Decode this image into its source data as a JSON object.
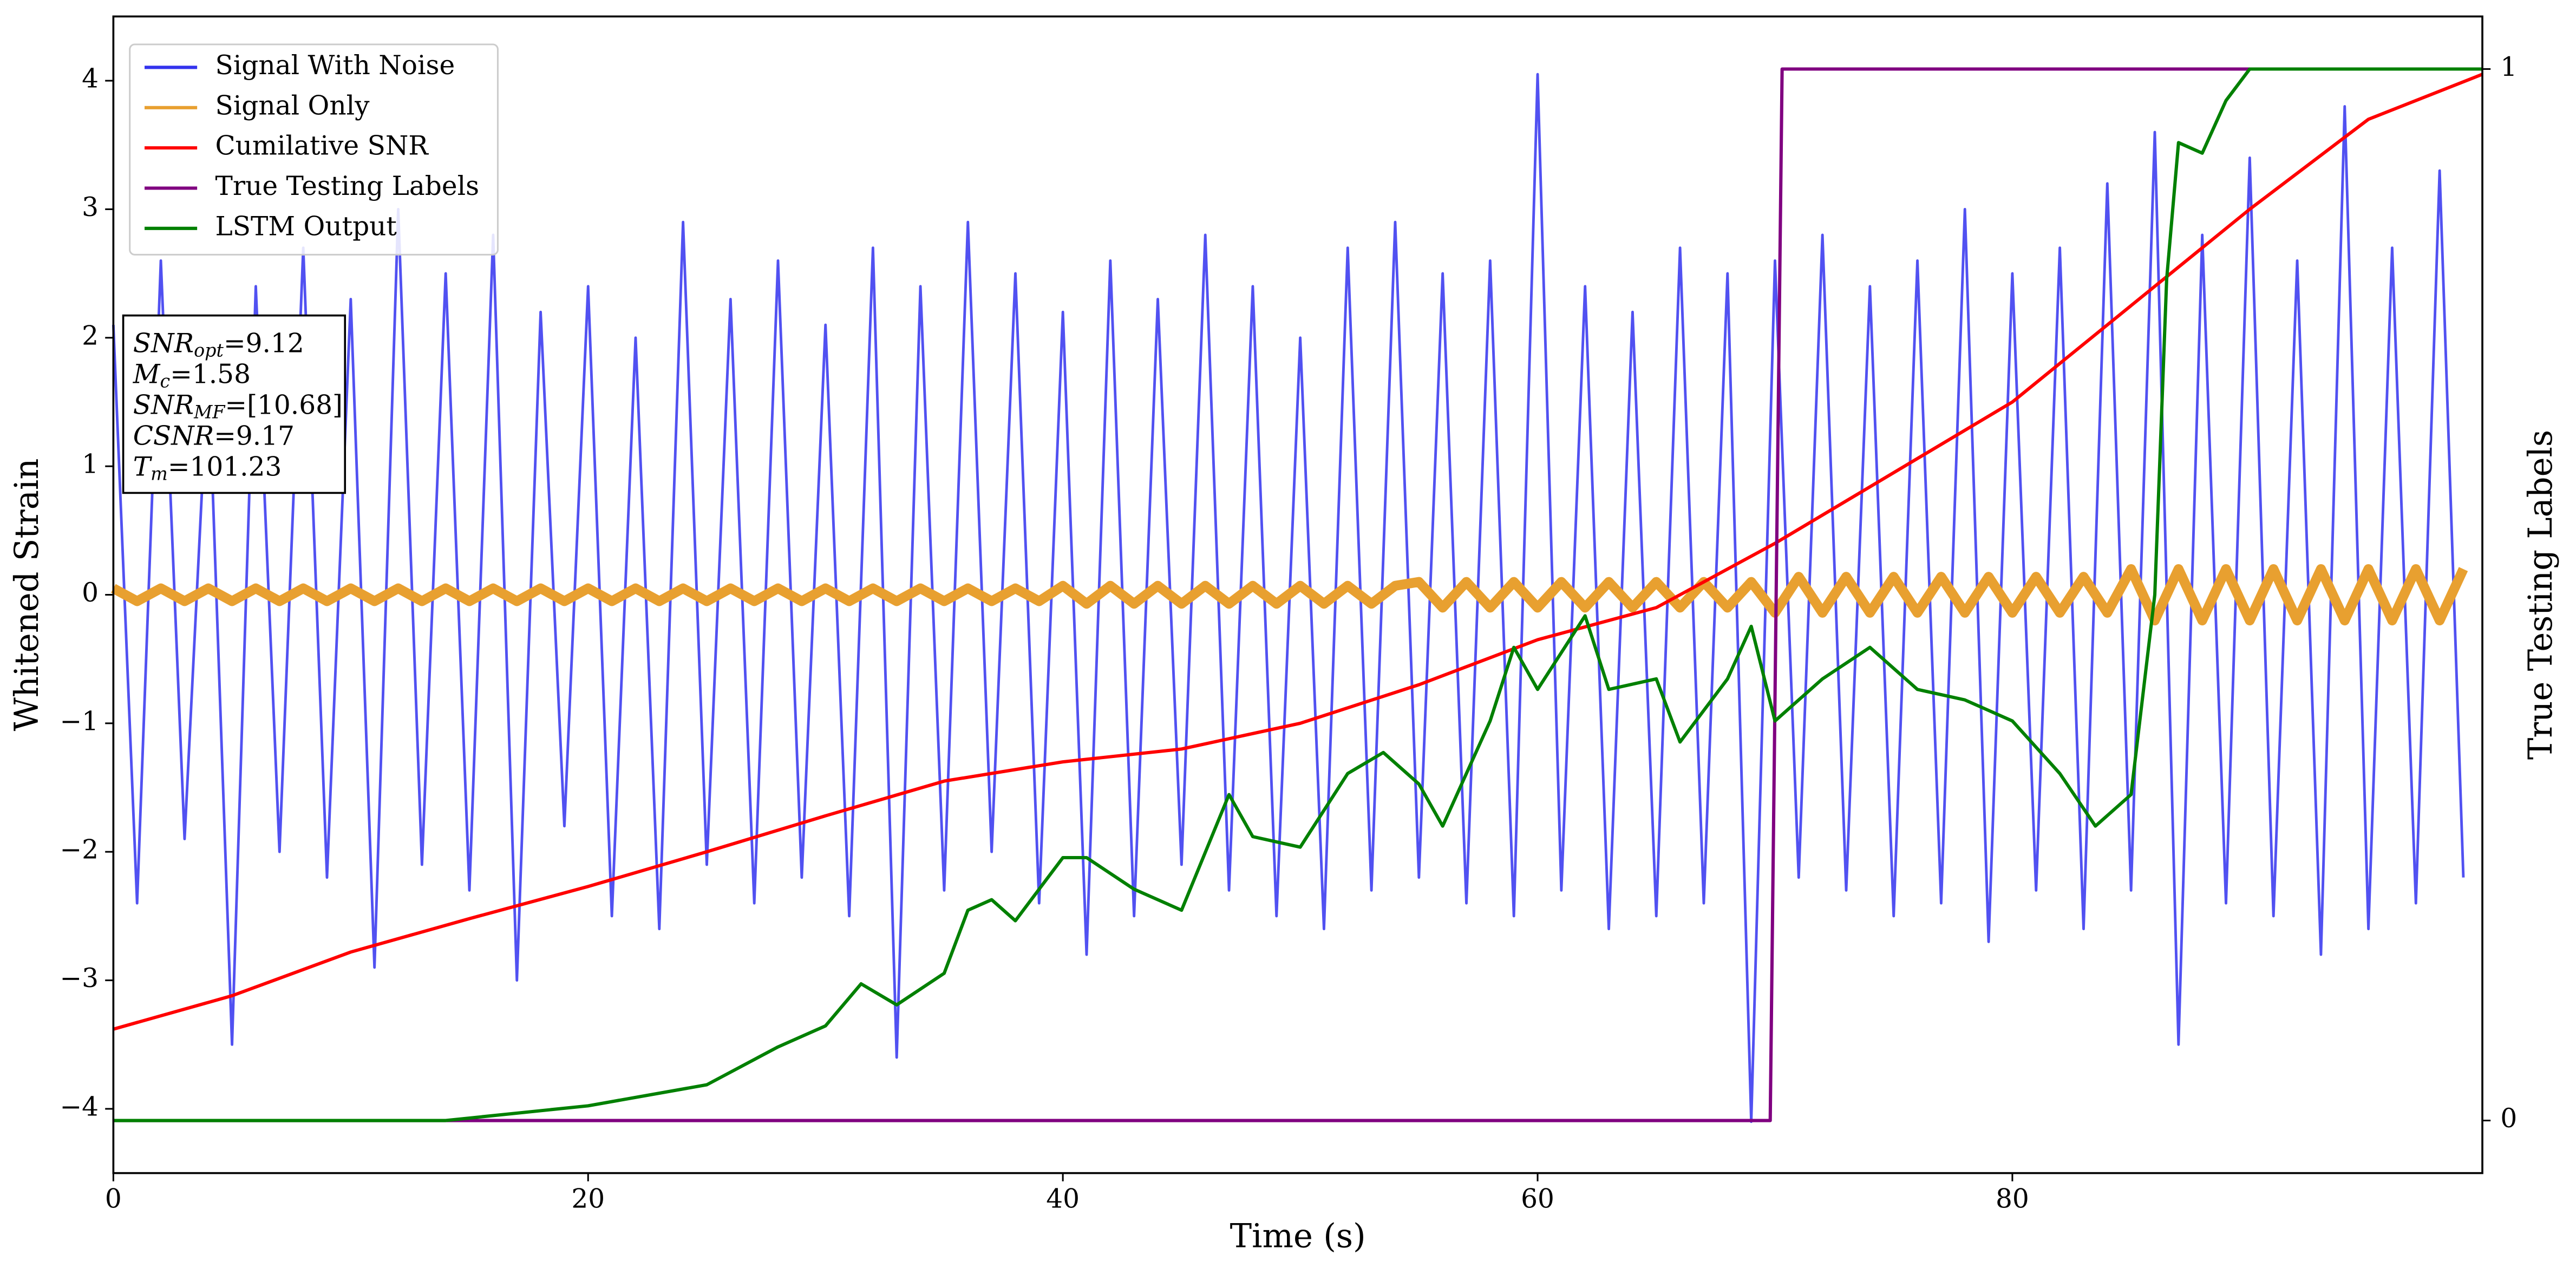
{
  "chart_data": {
    "type": "line",
    "x_label": "Time (s)",
    "y_label": "Whitened Strain",
    "y2_label": "True Testing Labels",
    "xlim": [
      0,
      99.8
    ],
    "ylim": [
      -4.5,
      4.5
    ],
    "y2lim": [
      -0.05,
      1.05
    ],
    "xticks": [
      0,
      20,
      40,
      60,
      80
    ],
    "yticks": [
      -4,
      -3,
      -2,
      -1,
      0,
      1,
      2,
      3,
      4
    ],
    "y2ticks": [
      0,
      1
    ],
    "legend": "upper left",
    "annotation": [
      {
        "main": "SNR",
        "sub": "opt",
        "value": "=9.12"
      },
      {
        "main": "M",
        "sub": "c",
        "value": "=1.58"
      },
      {
        "main": "SNR",
        "sub": "MF",
        "value": "=[10.68]"
      },
      {
        "main": "CSNR",
        "value": "=9.17"
      },
      {
        "main": "T",
        "sub": "m",
        "value": "=101.23"
      }
    ],
    "series": [
      {
        "name": "Signal With Noise",
        "color": "#3333ee",
        "width": 1.6,
        "x": [
          0,
          1,
          2,
          3,
          4,
          5,
          6,
          7,
          8,
          9,
          10,
          11,
          12,
          13,
          14,
          15,
          16,
          17,
          18,
          19,
          20,
          21,
          22,
          23,
          24,
          25,
          26,
          27,
          28,
          29,
          30,
          31,
          32,
          33,
          34,
          35,
          36,
          37,
          38,
          39,
          40,
          41,
          42,
          43,
          44,
          45,
          46,
          47,
          48,
          49,
          50,
          51,
          52,
          53,
          54,
          55,
          56,
          57,
          58,
          59,
          60,
          61,
          62,
          63,
          64,
          65,
          66,
          67,
          68,
          69,
          70,
          71,
          72,
          73,
          74,
          75,
          76,
          77,
          78,
          79,
          80,
          81,
          82,
          83,
          84,
          85,
          86,
          87,
          88,
          89,
          90,
          91,
          92,
          93,
          94,
          95,
          96,
          97,
          98,
          99
        ],
        "values": [
          2.1,
          -2.4,
          2.6,
          -1.9,
          1.8,
          -3.5,
          2.4,
          -2.0,
          2.7,
          -2.2,
          2.3,
          -2.9,
          3.0,
          -2.1,
          2.5,
          -2.3,
          2.8,
          -3.0,
          2.2,
          -1.8,
          2.4,
          -2.5,
          2.0,
          -2.6,
          2.9,
          -2.1,
          2.3,
          -2.4,
          2.6,
          -2.2,
          2.1,
          -2.5,
          2.7,
          -3.6,
          2.4,
          -2.3,
          2.9,
          -2.0,
          2.5,
          -2.4,
          2.2,
          -2.8,
          2.6,
          -2.5,
          2.3,
          -2.1,
          2.8,
          -2.3,
          2.4,
          -2.5,
          2.0,
          -2.6,
          2.7,
          -2.3,
          2.9,
          -2.2,
          2.5,
          -2.4,
          2.6,
          -2.5,
          4.05,
          -2.3,
          2.4,
          -2.6,
          2.2,
          -2.5,
          2.7,
          -2.4,
          2.5,
          -4.1,
          2.6,
          -2.2,
          2.8,
          -2.3,
          2.4,
          -2.5,
          2.6,
          -2.4,
          3.0,
          -2.7,
          2.5,
          -2.3,
          2.7,
          -2.6,
          3.2,
          -2.3,
          3.6,
          -3.5,
          2.8,
          -2.4,
          3.4,
          -2.5,
          2.6,
          -2.8,
          3.8,
          -2.6,
          2.7,
          -2.4,
          3.3,
          -2.2
        ]
      },
      {
        "name": "Signal Only",
        "color": "#e8a030",
        "width": 6,
        "x": [
          0,
          1,
          2,
          3,
          4,
          5,
          6,
          7,
          8,
          9,
          10,
          11,
          12,
          13,
          14,
          15,
          16,
          17,
          18,
          19,
          20,
          21,
          22,
          23,
          24,
          25,
          26,
          27,
          28,
          29,
          30,
          31,
          32,
          33,
          34,
          35,
          36,
          37,
          38,
          39,
          40,
          41,
          42,
          43,
          44,
          45,
          46,
          47,
          48,
          49,
          50,
          51,
          52,
          53,
          54,
          55,
          56,
          57,
          58,
          59,
          60,
          61,
          62,
          63,
          64,
          65,
          66,
          67,
          68,
          69,
          70,
          71,
          72,
          73,
          74,
          75,
          76,
          77,
          78,
          79,
          80,
          81,
          82,
          83,
          84,
          85,
          86,
          87,
          88,
          89,
          90,
          91,
          92,
          93,
          94,
          95,
          96,
          97,
          98,
          99
        ],
        "values": [
          0.05,
          -0.05,
          0.05,
          -0.05,
          0.05,
          -0.05,
          0.05,
          -0.05,
          0.05,
          -0.05,
          0.05,
          -0.05,
          0.05,
          -0.05,
          0.05,
          -0.05,
          0.05,
          -0.05,
          0.05,
          -0.05,
          0.05,
          -0.05,
          0.05,
          -0.05,
          0.05,
          -0.05,
          0.05,
          -0.05,
          0.05,
          -0.05,
          0.05,
          -0.05,
          0.05,
          -0.05,
          0.05,
          -0.05,
          0.05,
          -0.05,
          0.05,
          -0.05,
          0.07,
          -0.07,
          0.07,
          -0.07,
          0.07,
          -0.07,
          0.07,
          -0.07,
          0.07,
          -0.07,
          0.07,
          -0.07,
          0.07,
          -0.07,
          0.07,
          0.1,
          -0.1,
          0.1,
          -0.1,
          0.1,
          -0.1,
          0.1,
          -0.1,
          0.1,
          -0.1,
          0.1,
          -0.1,
          0.1,
          -0.1,
          0.1,
          -0.14,
          0.14,
          -0.14,
          0.14,
          -0.14,
          0.14,
          -0.14,
          0.14,
          -0.14,
          0.14,
          -0.14,
          0.14,
          -0.14,
          0.14,
          -0.14,
          0.2,
          -0.2,
          0.2,
          -0.2,
          0.2,
          -0.2,
          0.2,
          -0.2,
          0.2,
          -0.2,
          0.2,
          -0.2,
          0.2,
          -0.2,
          0.2
        ]
      },
      {
        "name": "Cumilative SNR",
        "color": "red",
        "width": 2,
        "x": [
          0,
          5,
          10,
          15,
          20,
          25,
          30,
          35,
          40,
          45,
          50,
          55,
          60,
          65,
          70,
          75,
          80,
          85,
          90,
          95,
          99.8
        ],
        "values": [
          -3.38,
          -3.12,
          -2.78,
          -2.52,
          -2.27,
          -2.0,
          -1.72,
          -1.45,
          -1.3,
          -1.2,
          -1.0,
          -0.7,
          -0.35,
          -0.1,
          0.4,
          0.95,
          1.5,
          2.25,
          3.0,
          3.7,
          4.05
        ]
      },
      {
        "name": "True Testing Labels",
        "color": "purple",
        "width": 2,
        "axis": "y2",
        "x": [
          0,
          69.8,
          70.3,
          99.8
        ],
        "values": [
          0,
          0,
          1,
          1
        ]
      },
      {
        "name": "LSTM Output",
        "color": "green",
        "width": 2,
        "axis": "y2",
        "x": [
          0,
          14,
          20,
          25,
          28,
          30,
          31.5,
          33,
          35,
          36,
          37,
          38,
          40,
          41,
          43,
          45,
          47,
          48,
          50,
          52,
          53.5,
          55,
          56,
          58,
          59,
          60,
          62,
          63,
          65,
          66,
          68,
          69,
          70,
          72,
          74,
          76,
          78,
          80,
          82,
          83.5,
          85,
          86,
          86.5,
          87,
          88,
          89,
          90,
          92,
          93,
          99.8
        ],
        "values": [
          0,
          0,
          0.014,
          0.034,
          0.07,
          0.09,
          0.13,
          0.11,
          0.14,
          0.2,
          0.21,
          0.19,
          0.25,
          0.25,
          0.22,
          0.2,
          0.31,
          0.27,
          0.26,
          0.33,
          0.35,
          0.32,
          0.28,
          0.38,
          0.45,
          0.41,
          0.48,
          0.41,
          0.42,
          0.36,
          0.42,
          0.47,
          0.38,
          0.42,
          0.45,
          0.41,
          0.4,
          0.38,
          0.33,
          0.28,
          0.31,
          0.5,
          0.8,
          0.93,
          0.92,
          0.97,
          1.0,
          1.0,
          1.0,
          1.0
        ]
      }
    ]
  }
}
